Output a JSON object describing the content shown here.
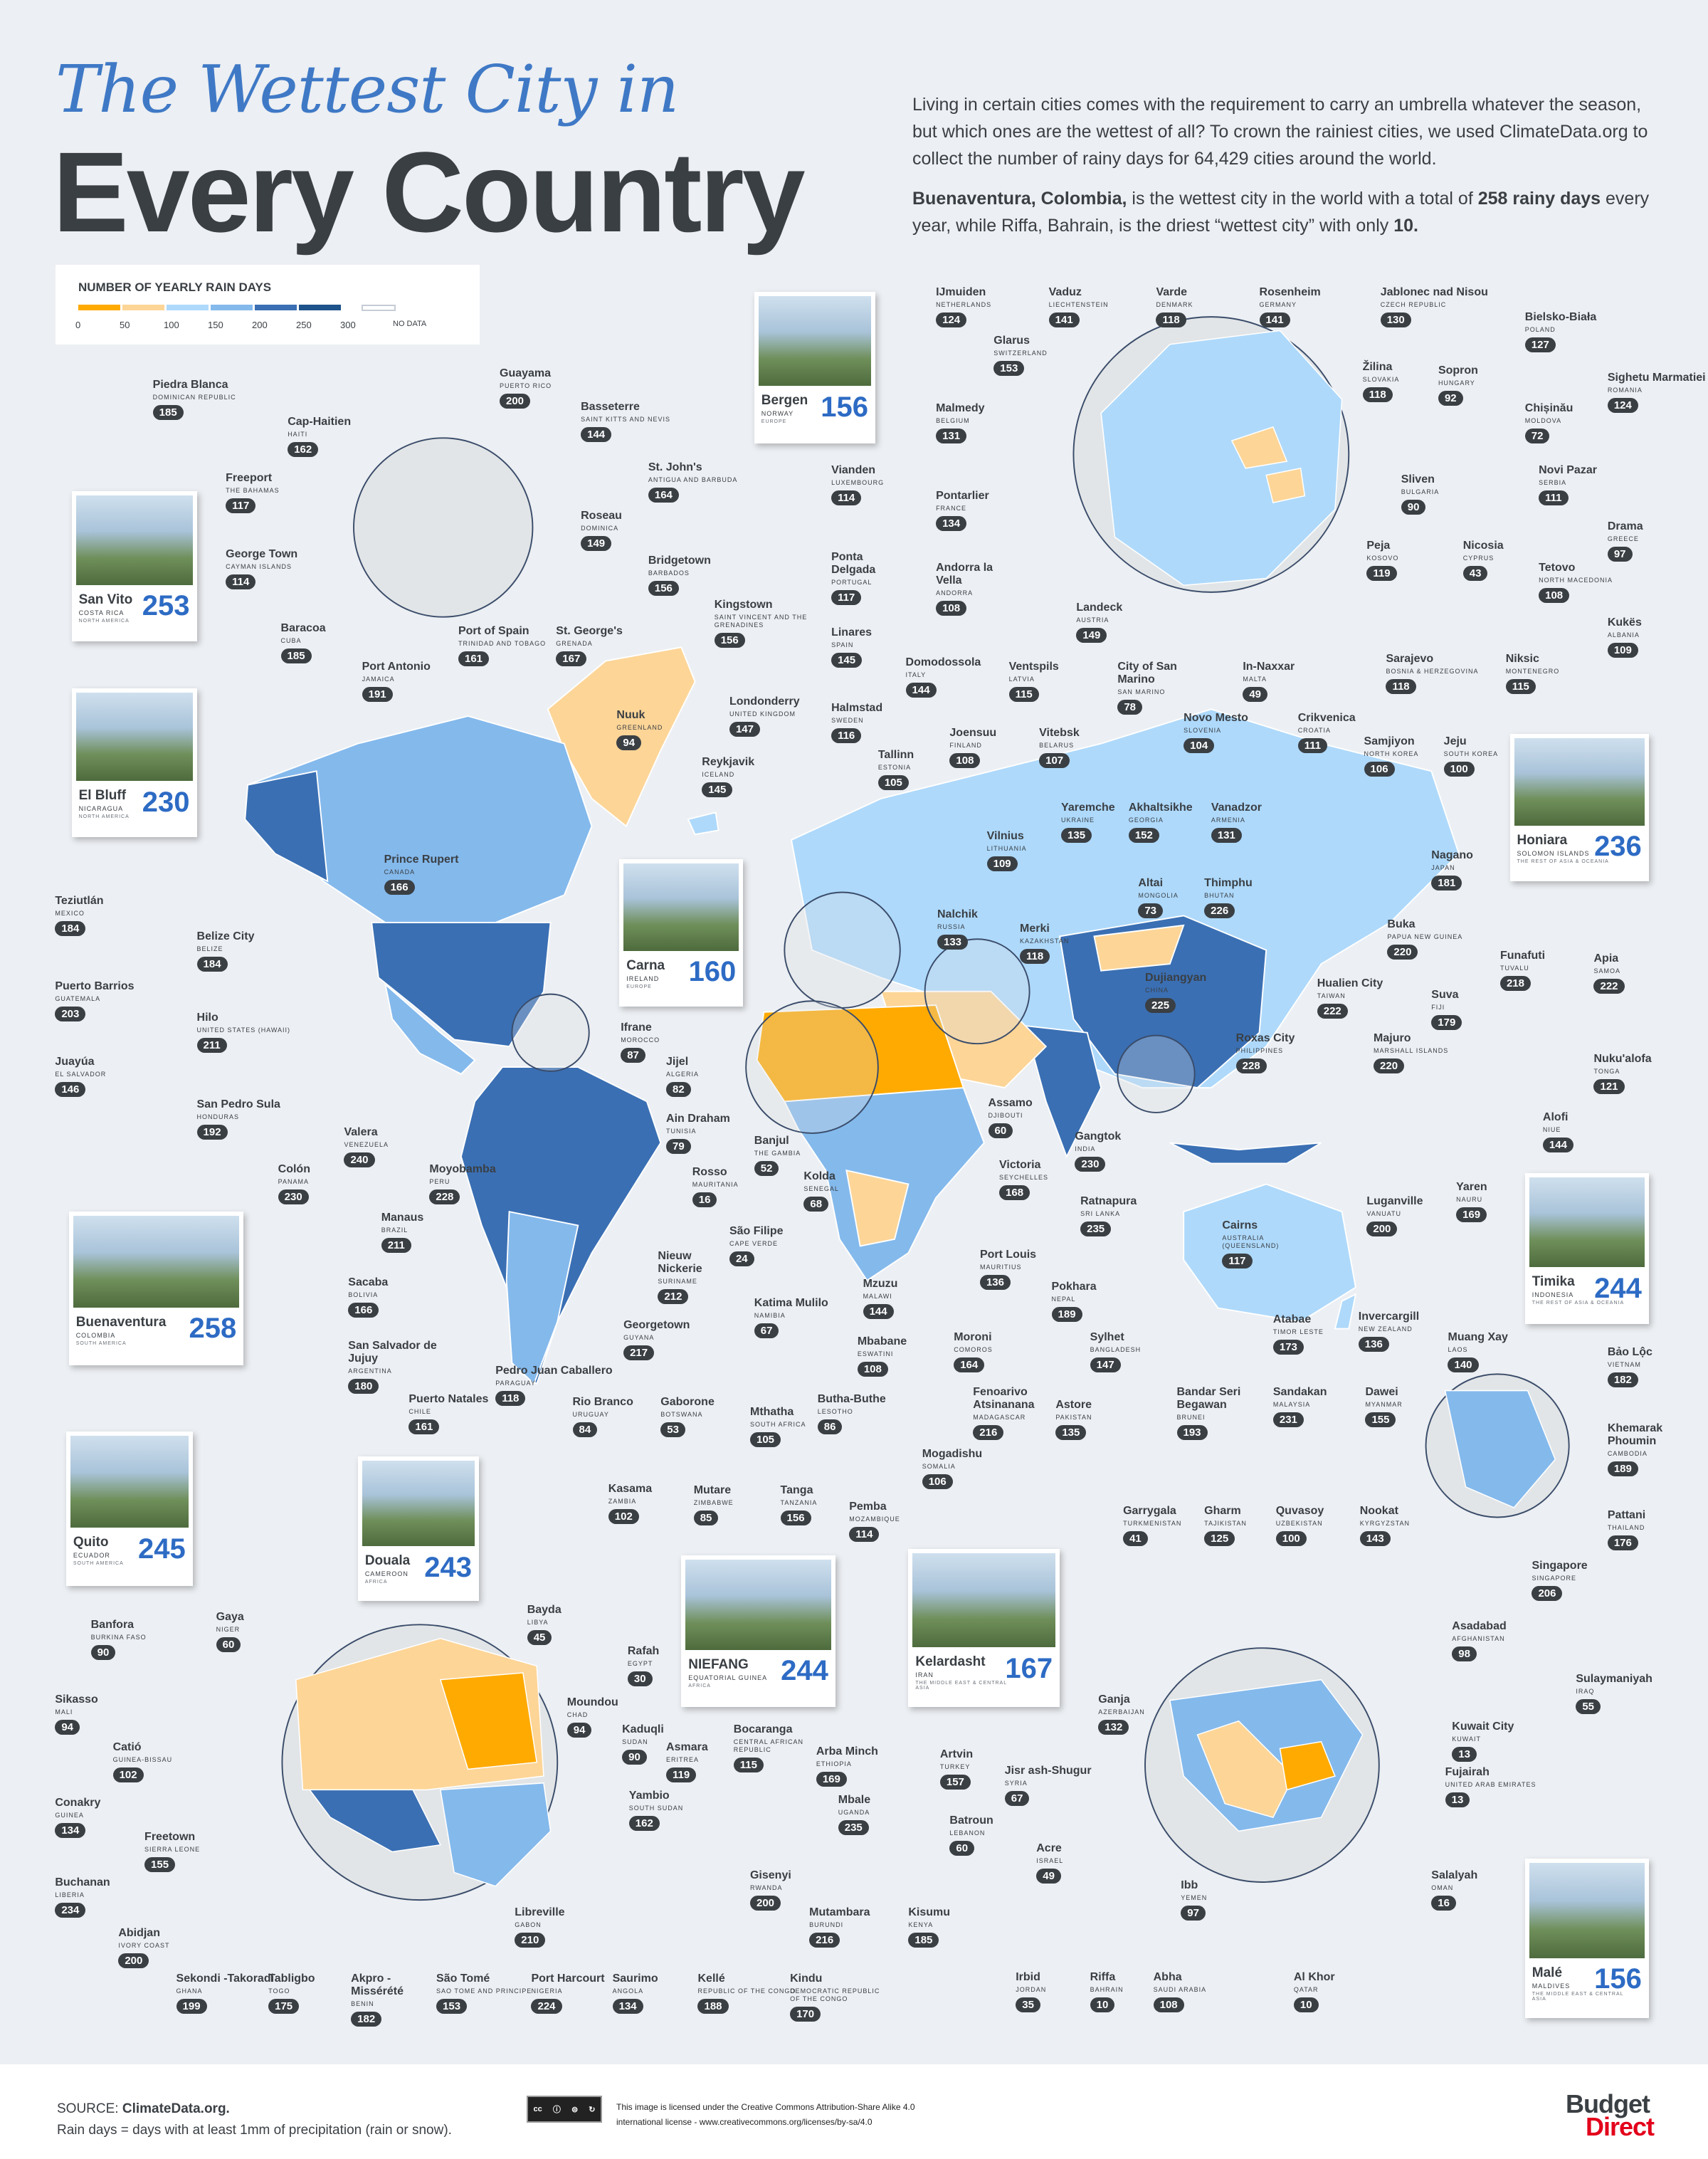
{
  "header": {
    "title_line1": "The Wettest City in",
    "title_line2": "Every Country",
    "intro": "Living in certain cities comes with the requirement to carry an umbrella whatever the season, but which ones are the wettest of all? To crown the rainiest cities, we used ClimateData.org to collect the number of rainy days for 64,429 cities around the world.",
    "highlight_city": "Buenaventura, Colombia,",
    "highlight_mid": " is the wettest city in the world with a total of ",
    "highlight_value": "258 rainy days",
    "highlight_end": " every year, while Riffa, Bahrain, is the driest “wettest city” with only ",
    "highlight_min": "10."
  },
  "legend": {
    "title": "NUMBER OF YEARLY RAIN DAYS",
    "ticks": [
      "0",
      "50",
      "100",
      "150",
      "200",
      "250",
      "300"
    ],
    "no_data": "NO DATA",
    "colors": [
      "#ffaa00",
      "#fdd597",
      "#aed9fb",
      "#84b9ec",
      "#3a6fb3",
      "#1d528a"
    ],
    "no_data_color": "#ffffff"
  },
  "cards": [
    {
      "name": "Bergen",
      "country": "NORWAY",
      "region": "EUROPE",
      "value": "156"
    },
    {
      "name": "San Vito",
      "country": "COSTA RICA",
      "region": "NORTH AMERICA",
      "value": "253"
    },
    {
      "name": "El Bluff",
      "country": "NICARAGUA",
      "region": "NORTH AMERICA",
      "value": "230"
    },
    {
      "name": "Carna",
      "country": "IRELAND",
      "region": "EUROPE",
      "value": "160"
    },
    {
      "name": "Honiara",
      "country": "SOLOMON ISLANDS",
      "region": "THE REST OF ASIA & OCEANIA",
      "value": "236"
    },
    {
      "name": "Buenaventura",
      "country": "COLOMBIA",
      "region": "SOUTH AMERICA",
      "value": "258"
    },
    {
      "name": "Timika",
      "country": "INDONESIA",
      "region": "THE REST OF ASIA & OCEANIA",
      "value": "244"
    },
    {
      "name": "Quito",
      "country": "ECUADOR",
      "region": "SOUTH AMERICA",
      "value": "245"
    },
    {
      "name": "Douala",
      "country": "CAMEROON",
      "region": "AFRICA",
      "value": "243"
    },
    {
      "name": "NIEFANG",
      "country": "EQUATORIAL GUINEA",
      "region": "AFRICA",
      "value": "244"
    },
    {
      "name": "Kelardasht",
      "country": "IRAN",
      "region": "THE MIDDLE EAST & CENTRAL ASIA",
      "value": "167"
    },
    {
      "name": "Malé",
      "country": "MALDIVES",
      "region": "THE MIDDLE EAST & CENTRAL ASIA",
      "value": "156"
    }
  ],
  "cities": [
    {
      "name": "IJmuiden",
      "country": "Netherlands",
      "value": "124"
    },
    {
      "name": "Vaduz",
      "country": "Liechtenstein",
      "value": "141"
    },
    {
      "name": "Varde",
      "country": "Denmark",
      "value": "118"
    },
    {
      "name": "Rosenheim",
      "country": "Germany",
      "value": "141"
    },
    {
      "name": "Jablonec nad Nisou",
      "country": "Czech Republic",
      "value": "130"
    },
    {
      "name": "Bielsko-Biała",
      "country": "Poland",
      "value": "127"
    },
    {
      "name": "Glarus",
      "country": "Switzerland",
      "value": "153"
    },
    {
      "name": "Žilina",
      "country": "Slovakia",
      "value": "118"
    },
    {
      "name": "Sopron",
      "country": "Hungary",
      "value": "92"
    },
    {
      "name": "Sighetu Marmatiei",
      "country": "Romania",
      "value": "124"
    },
    {
      "name": "Malmedy",
      "country": "Belgium",
      "value": "131"
    },
    {
      "name": "Chișinău",
      "country": "Moldova",
      "value": "72"
    },
    {
      "name": "Vianden",
      "country": "Luxembourg",
      "value": "114"
    },
    {
      "name": "Novi Pazar",
      "country": "Serbia",
      "value": "111"
    },
    {
      "name": "Sliven",
      "country": "Bulgaria",
      "value": "90"
    },
    {
      "name": "Pontarlier",
      "country": "France",
      "value": "134"
    },
    {
      "name": "Drama",
      "country": "Greece",
      "value": "97"
    },
    {
      "name": "Peja",
      "country": "Kosovo",
      "value": "119"
    },
    {
      "name": "Nicosia",
      "country": "Cyprus",
      "value": "43"
    },
    {
      "name": "Ponta Delgada",
      "country": "Portugal",
      "value": "117"
    },
    {
      "name": "Andorra la Vella",
      "country": "Andorra",
      "value": "108"
    },
    {
      "name": "Tetovo",
      "country": "North Macedonia",
      "value": "108"
    },
    {
      "name": "Kukës",
      "country": "Albania",
      "value": "109"
    },
    {
      "name": "Landeck",
      "country": "Austria",
      "value": "149"
    },
    {
      "name": "Linares",
      "country": "Spain",
      "value": "145"
    },
    {
      "name": "Sarajevo",
      "country": "Bosnia & Herzegovina",
      "value": "118"
    },
    {
      "name": "Niksic",
      "country": "Montenegro",
      "value": "115"
    },
    {
      "name": "Domodossola",
      "country": "Italy",
      "value": "144"
    },
    {
      "name": "Ventspils",
      "country": "Latvia",
      "value": "115"
    },
    {
      "name": "City of San Marino",
      "country": "San Marino",
      "value": "78"
    },
    {
      "name": "In-Naxxar",
      "country": "Malta",
      "value": "49"
    },
    {
      "name": "Halmstad",
      "country": "Sweden",
      "value": "116"
    },
    {
      "name": "Novo Mesto",
      "country": "Slovenia",
      "value": "104"
    },
    {
      "name": "Crikvenica",
      "country": "Croatia",
      "value": "111"
    },
    {
      "name": "Londonderry",
      "country": "United Kingdom",
      "value": "147"
    },
    {
      "name": "Nuuk",
      "country": "Greenland",
      "value": "94"
    },
    {
      "name": "Reykjavik",
      "country": "Iceland",
      "value": "145"
    },
    {
      "name": "Tallinn",
      "country": "Estonia",
      "value": "105"
    },
    {
      "name": "Joensuu",
      "country": "Finland",
      "value": "108"
    },
    {
      "name": "Vitebsk",
      "country": "Belarus",
      "value": "107"
    },
    {
      "name": "Samjiyon",
      "country": "North Korea",
      "value": "106"
    },
    {
      "name": "Jeju",
      "country": "South Korea",
      "value": "100"
    },
    {
      "name": "Yaremche",
      "country": "Ukraine",
      "value": "135"
    },
    {
      "name": "Akhaltsikhe",
      "country": "Georgia",
      "value": "152"
    },
    {
      "name": "Vanadzor",
      "country": "Armenia",
      "value": "131"
    },
    {
      "name": "Vilnius",
      "country": "Lithuania",
      "value": "109"
    },
    {
      "name": "Nagano",
      "country": "Japan",
      "value": "181"
    },
    {
      "name": "Altai",
      "country": "Mongolia",
      "value": "73"
    },
    {
      "name": "Thimphu",
      "country": "Bhutan",
      "value": "226"
    },
    {
      "name": "Nalchik",
      "country": "Russia",
      "value": "133"
    },
    {
      "name": "Merki",
      "country": "Kazakhstan",
      "value": "118"
    },
    {
      "name": "Buka",
      "country": "Papua New Guinea",
      "value": "220"
    },
    {
      "name": "Dujiangyan",
      "country": "China",
      "value": "225"
    },
    {
      "name": "Funafuti",
      "country": "Tuvalu",
      "value": "218"
    },
    {
      "name": "Apia",
      "country": "Samoa",
      "value": "222"
    },
    {
      "name": "Hualien City",
      "country": "Taiwan",
      "value": "222"
    },
    {
      "name": "Suva",
      "country": "Fiji",
      "value": "179"
    },
    {
      "name": "Ifrane",
      "country": "Morocco",
      "value": "87"
    },
    {
      "name": "Jijel",
      "country": "Algeria",
      "value": "82"
    },
    {
      "name": "Majuro",
      "country": "Marshall Islands",
      "value": "220"
    },
    {
      "name": "Roxas City",
      "country": "Philippines",
      "value": "228"
    },
    {
      "name": "Nuku'alofa",
      "country": "Tonga",
      "value": "121"
    },
    {
      "name": "Assamo",
      "country": "Djibouti",
      "value": "60"
    },
    {
      "name": "Ain Draham",
      "country": "Tunisia",
      "value": "79"
    },
    {
      "name": "Alofi",
      "country": "Niue",
      "value": "144"
    },
    {
      "name": "Banjul",
      "country": "The Gambia",
      "value": "52"
    },
    {
      "name": "Gangtok",
      "country": "India",
      "value": "230"
    },
    {
      "name": "Victoria",
      "country": "Seychelles",
      "value": "168"
    },
    {
      "name": "Rosso",
      "country": "Mauritania",
      "value": "16"
    },
    {
      "name": "Kolda",
      "country": "Senegal",
      "value": "68"
    },
    {
      "name": "Yaren",
      "country": "Nauru",
      "value": "169"
    },
    {
      "name": "Ratnapura",
      "country": "Sri Lanka",
      "value": "235"
    },
    {
      "name": "Luganville",
      "country": "Vanuatu",
      "value": "200"
    },
    {
      "name": "Cairns",
      "country": "Australia (Queensland)",
      "value": "117"
    },
    {
      "name": "São Filipe",
      "country": "Cape Verde",
      "value": "24"
    },
    {
      "name": "Nieuw Nickerie",
      "country": "Suriname",
      "value": "212"
    },
    {
      "name": "Port Louis",
      "country": "Mauritius",
      "value": "136"
    },
    {
      "name": "Pokhara",
      "country": "Nepal",
      "value": "189"
    },
    {
      "name": "Katima Mulilo",
      "country": "Namibia",
      "value": "67"
    },
    {
      "name": "Mzuzu",
      "country": "Malawi",
      "value": "144"
    },
    {
      "name": "Atabae",
      "country": "Timor Leste",
      "value": "173"
    },
    {
      "name": "Invercargill",
      "country": "New Zealand",
      "value": "136"
    },
    {
      "name": "Georgetown",
      "country": "Guyana",
      "value": "217"
    },
    {
      "name": "Sylhet",
      "country": "Bangladesh",
      "value": "147"
    },
    {
      "name": "Mbabane",
      "country": "Eswatini",
      "value": "108"
    },
    {
      "name": "Moroni",
      "country": "Comoros",
      "value": "164"
    },
    {
      "name": "Muang Xay",
      "country": "Laos",
      "value": "140"
    },
    {
      "name": "Bảo Lộc",
      "country": "Vietnam",
      "value": "182"
    },
    {
      "name": "Gaborone",
      "country": "Botswana",
      "value": "53"
    },
    {
      "name": "Butha-Buthe",
      "country": "Lesotho",
      "value": "86"
    },
    {
      "name": "Fenoarivo Atsinanana",
      "country": "Madagascar",
      "value": "216"
    },
    {
      "name": "Astore",
      "country": "Pakistan",
      "value": "135"
    },
    {
      "name": "Bandar Seri Begawan",
      "country": "Brunei",
      "value": "193"
    },
    {
      "name": "Sandakan",
      "country": "Malaysia",
      "value": "231"
    },
    {
      "name": "Dawei",
      "country": "Myanmar",
      "value": "155"
    },
    {
      "name": "Khemarak Phoumin",
      "country": "Cambodia",
      "value": "189"
    },
    {
      "name": "Mthatha",
      "country": "South Africa",
      "value": "105"
    },
    {
      "name": "Mogadishu",
      "country": "Somalia",
      "value": "106"
    },
    {
      "name": "Kasama",
      "country": "Zambia",
      "value": "102"
    },
    {
      "name": "Mutare",
      "country": "Zimbabwe",
      "value": "85"
    },
    {
      "name": "Tanga",
      "country": "Tanzania",
      "value": "156"
    },
    {
      "name": "Pemba",
      "country": "Mozambique",
      "value": "114"
    },
    {
      "name": "Pattani",
      "country": "Thailand",
      "value": "176"
    },
    {
      "name": "Garrygala",
      "country": "Turkmenistan",
      "value": "41"
    },
    {
      "name": "Gharm",
      "country": "Tajikistan",
      "value": "125"
    },
    {
      "name": "Quvasoy",
      "country": "Uzbekistan",
      "value": "100"
    },
    {
      "name": "Nookat",
      "country": "Kyrgyzstan",
      "value": "143"
    },
    {
      "name": "Singapore",
      "country": "Singapore",
      "value": "206"
    },
    {
      "name": "Guayama",
      "country": "Puerto Rico",
      "value": "200"
    },
    {
      "name": "Piedra Blanca",
      "country": "Dominican Republic",
      "value": "185"
    },
    {
      "name": "Basseterre",
      "country": "Saint Kitts and Nevis",
      "value": "144"
    },
    {
      "name": "Cap-Haitien",
      "country": "Haiti",
      "value": "162"
    },
    {
      "name": "St. John's",
      "country": "Antigua and Barbuda",
      "value": "164"
    },
    {
      "name": "Freeport",
      "country": "The Bahamas",
      "value": "117"
    },
    {
      "name": "Roseau",
      "country": "Dominica",
      "value": "149"
    },
    {
      "name": "George Town",
      "country": "Cayman Islands",
      "value": "114"
    },
    {
      "name": "Bridgetown",
      "country": "Barbados",
      "value": "156"
    },
    {
      "name": "Kingstown",
      "country": "Saint Vincent and the Grenadines",
      "value": "156"
    },
    {
      "name": "Baracoa",
      "country": "Cuba",
      "value": "185"
    },
    {
      "name": "St. George's",
      "country": "Grenada",
      "value": "167"
    },
    {
      "name": "Port of Spain",
      "country": "Trinidad and Tobago",
      "value": "161"
    },
    {
      "name": "Port Antonio",
      "country": "Jamaica",
      "value": "191"
    },
    {
      "name": "Prince Rupert",
      "country": "Canada",
      "value": "166"
    },
    {
      "name": "Teziutlán",
      "country": "Mexico",
      "value": "184"
    },
    {
      "name": "Belize City",
      "country": "Belize",
      "value": "184"
    },
    {
      "name": "Puerto Barrios",
      "country": "Guatemala",
      "value": "203"
    },
    {
      "name": "Hilo",
      "country": "United States (Hawaii)",
      "value": "211"
    },
    {
      "name": "Juayúa",
      "country": "El Salvador",
      "value": "146"
    },
    {
      "name": "San Pedro Sula",
      "country": "Honduras",
      "value": "192"
    },
    {
      "name": "Valera",
      "country": "Venezuela",
      "value": "240"
    },
    {
      "name": "Colón",
      "country": "Panama",
      "value": "230"
    },
    {
      "name": "Moyobamba",
      "country": "Peru",
      "value": "228"
    },
    {
      "name": "Manaus",
      "country": "Brazil",
      "value": "211"
    },
    {
      "name": "Sacaba",
      "country": "Bolivia",
      "value": "166"
    },
    {
      "name": "San Salvador de Jujuy",
      "country": "Argentina",
      "value": "180"
    },
    {
      "name": "Puerto Natales",
      "country": "Chile",
      "value": "161"
    },
    {
      "name": "Pedro Juan Caballero",
      "country": "Paraguay",
      "value": "118"
    },
    {
      "name": "Rio Branco",
      "country": "Uruguay",
      "value": "84"
    },
    {
      "name": "Gaya",
      "country": "Niger",
      "value": "60"
    },
    {
      "name": "Bayda",
      "country": "Libya",
      "value": "45"
    },
    {
      "name": "Banfora",
      "country": "Burkina Faso",
      "value": "90"
    },
    {
      "name": "Rafah",
      "country": "Egypt",
      "value": "30"
    },
    {
      "name": "Moundou",
      "country": "Chad",
      "value": "94"
    },
    {
      "name": "Sikasso",
      "country": "Mali",
      "value": "94"
    },
    {
      "name": "Kaduqli",
      "country": "Sudan",
      "value": "90"
    },
    {
      "name": "Bocaranga",
      "country": "Central African Republic",
      "value": "115"
    },
    {
      "name": "Catió",
      "country": "Guinea-Bissau",
      "value": "102"
    },
    {
      "name": "Asmara",
      "country": "Eritrea",
      "value": "119"
    },
    {
      "name": "Arba Minch",
      "country": "Ethiopia",
      "value": "169"
    },
    {
      "name": "Conakry",
      "country": "Guinea",
      "value": "134"
    },
    {
      "name": "Yambio",
      "country": "South Sudan",
      "value": "162"
    },
    {
      "name": "Mbale",
      "country": "Uganda",
      "value": "235"
    },
    {
      "name": "Freetown",
      "country": "Sierra Leone",
      "value": "155"
    },
    {
      "name": "Buchanan",
      "country": "Liberia",
      "value": "234"
    },
    {
      "name": "Gisenyi",
      "country": "Rwanda",
      "value": "200"
    },
    {
      "name": "Kisumu",
      "country": "Kenya",
      "value": "185"
    },
    {
      "name": "Mutambara",
      "country": "Burundi",
      "value": "216"
    },
    {
      "name": "Libreville",
      "country": "Gabon",
      "value": "210"
    },
    {
      "name": "Abidjan",
      "country": "Ivory Coast",
      "value": "200"
    },
    {
      "name": "Sekondi -Takoradi",
      "country": "Ghana",
      "value": "199"
    },
    {
      "name": "Tabligbo",
      "country": "Togo",
      "value": "175"
    },
    {
      "name": "Akpro -Missérété",
      "country": "Benin",
      "value": "182"
    },
    {
      "name": "São Tomé",
      "country": "Sao Tome and Principe",
      "value": "153"
    },
    {
      "name": "Port Harcourt",
      "country": "Nigeria",
      "value": "224"
    },
    {
      "name": "Saurimo",
      "country": "Angola",
      "value": "134"
    },
    {
      "name": "Kellé",
      "country": "Republic of the Congo",
      "value": "188"
    },
    {
      "name": "Kindu",
      "country": "Democratic Republic of the Congo",
      "value": "170"
    },
    {
      "name": "Asadabad",
      "country": "Afghanistan",
      "value": "98"
    },
    {
      "name": "Sulaymaniyah",
      "country": "Iraq",
      "value": "55"
    },
    {
      "name": "Ganja",
      "country": "Azerbaijan",
      "value": "132"
    },
    {
      "name": "Kuwait City",
      "country": "Kuwait",
      "value": "13"
    },
    {
      "name": "Artvin",
      "country": "Turkey",
      "value": "157"
    },
    {
      "name": "Jisr ash-Shugur",
      "country": "Syria",
      "value": "67"
    },
    {
      "name": "Fujairah",
      "country": "United Arab Emirates",
      "value": "13"
    },
    {
      "name": "Batroun",
      "country": "Lebanon",
      "value": "60"
    },
    {
      "name": "Acre",
      "country": "Israel",
      "value": "49"
    },
    {
      "name": "Salalyah",
      "country": "Oman",
      "value": "16"
    },
    {
      "name": "Ibb",
      "country": "Yemen",
      "value": "97"
    },
    {
      "name": "Irbid",
      "country": "Jordan",
      "value": "35"
    },
    {
      "name": "Riffa",
      "country": "Bahrain",
      "value": "10"
    },
    {
      "name": "Abha",
      "country": "Saudi Arabia",
      "value": "108"
    },
    {
      "name": "Al Khor",
      "country": "Qatar",
      "value": "10"
    }
  ],
  "footer": {
    "source_label": "SOURCE: ",
    "source": "ClimateData.org.",
    "note": "Rain days = days with at least 1mm of precipitation (rain or snow).",
    "license_icon": "cc-by-nc-sa-icon",
    "license_line1": "This image is licensed under the Creative Commons Attribution-Share Alike 4.0",
    "license_line2": "international license - www.creativecommons.org/licenses/by-sa/4.0",
    "logo_part1": "Budget",
    "logo_part2": "Direct"
  }
}
